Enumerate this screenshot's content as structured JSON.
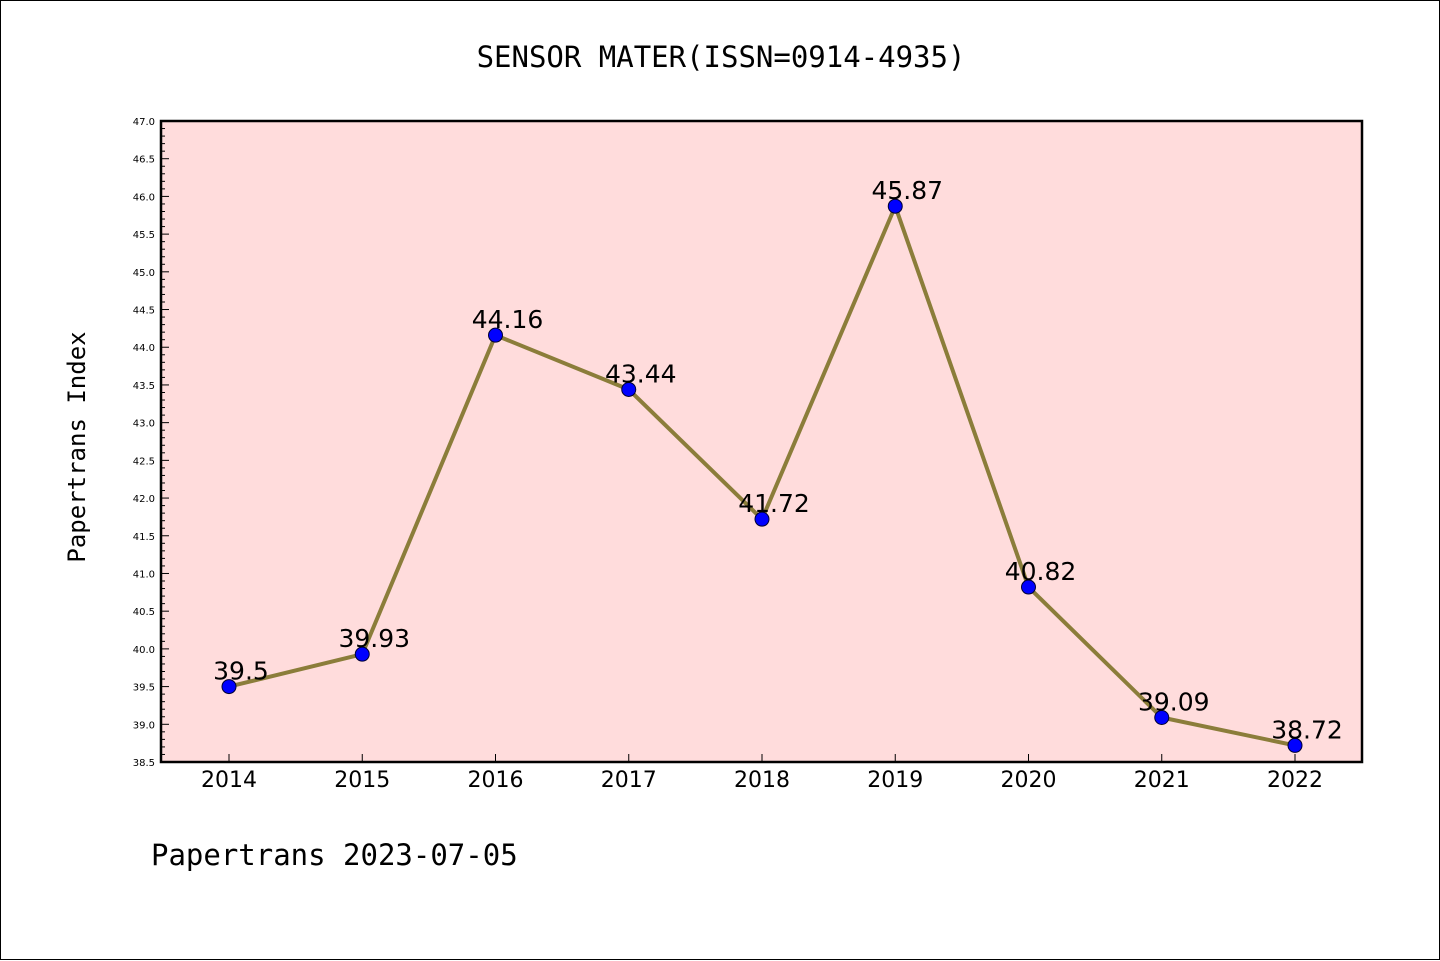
{
  "chart_data": {
    "type": "line",
    "title": "SENSOR MATER(ISSN=0914-4935)",
    "ylabel": "Papertrans Index",
    "xlabel": "",
    "footer": "Papertrans 2023-07-05",
    "categories": [
      "2014",
      "2015",
      "2016",
      "2017",
      "2018",
      "2019",
      "2020",
      "2021",
      "2022"
    ],
    "series": [
      {
        "values": [
          39.5,
          39.93,
          44.16,
          43.44,
          41.72,
          45.87,
          40.82,
          39.09,
          38.72
        ],
        "labels": [
          "39.5",
          "39.93",
          "44.16",
          "43.44",
          "41.72",
          "45.87",
          "40.82",
          "39.09",
          "38.72"
        ],
        "line_color": "#8b7d3a",
        "marker_color": "#0000ff"
      }
    ],
    "ylim": [
      38.5,
      47.0
    ],
    "yticks": [
      "38.5",
      "39.0",
      "39.5",
      "40.0",
      "40.5",
      "41.0",
      "41.5",
      "42.0",
      "42.5",
      "43.0",
      "43.5",
      "44.0",
      "44.5",
      "45.0",
      "45.5",
      "46.0",
      "46.5",
      "47.0"
    ],
    "plot_background": "#ffdcdc",
    "grid": false,
    "legend": "none"
  }
}
